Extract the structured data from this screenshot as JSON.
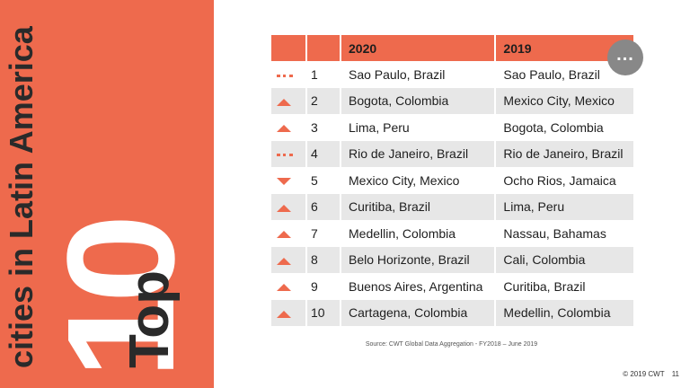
{
  "side": {
    "top": "Top",
    "ten": "10",
    "subtitle": "cities in Latin America"
  },
  "table": {
    "headers": [
      "",
      "",
      "2020",
      "2019"
    ],
    "rows": [
      {
        "trend": "same",
        "rank": "1",
        "y2020": "Sao Paulo, Brazil",
        "y2019": "Sao Paulo, Brazil"
      },
      {
        "trend": "up",
        "rank": "2",
        "y2020": "Bogota, Colombia",
        "y2019": "Mexico City, Mexico"
      },
      {
        "trend": "up",
        "rank": "3",
        "y2020": "Lima, Peru",
        "y2019": "Bogota, Colombia"
      },
      {
        "trend": "same",
        "rank": "4",
        "y2020": "Rio de Janeiro, Brazil",
        "y2019": "Rio de Janeiro, Brazil"
      },
      {
        "trend": "down",
        "rank": "5",
        "y2020": "Mexico City, Mexico",
        "y2019": "Ocho Rios, Jamaica"
      },
      {
        "trend": "up",
        "rank": "6",
        "y2020": "Curitiba, Brazil",
        "y2019": "Lima, Peru"
      },
      {
        "trend": "up",
        "rank": "7",
        "y2020": "Medellin, Colombia",
        "y2019": "Nassau, Bahamas"
      },
      {
        "trend": "up",
        "rank": "8",
        "y2020": "Belo Horizonte, Brazil",
        "y2019": "Cali, Colombia"
      },
      {
        "trend": "up",
        "rank": "9",
        "y2020": "Buenos Aires, Argentina",
        "y2019": "Curitiba, Brazil"
      },
      {
        "trend": "up",
        "rank": "10",
        "y2020": "Cartagena, Colombia",
        "y2019": "Medellin, Colombia"
      }
    ]
  },
  "more_button": {
    "label": "..."
  },
  "source": "Source: CWT Global Data Aggregation - FY2018 – June 2019",
  "footer": {
    "copyright": "© 2019 CWT",
    "page": "11"
  },
  "colors": {
    "accent": "#ee6a4d",
    "row_shade": "#e7e7e7"
  },
  "icons": {
    "up": "triangle-up-icon",
    "down": "triangle-down-icon",
    "same": "dotted-line-icon"
  }
}
